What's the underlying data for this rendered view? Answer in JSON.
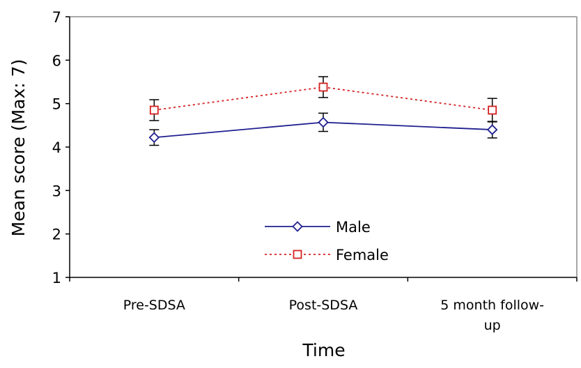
{
  "chart_data": {
    "type": "line",
    "title": "",
    "xlabel": "Time",
    "ylabel": "Mean score (Max: 7)",
    "ylim": [
      1,
      7
    ],
    "yticks": [
      1,
      2,
      3,
      4,
      5,
      6,
      7
    ],
    "categories": [
      [
        "Pre-SDSA"
      ],
      [
        "Post-SDSA"
      ],
      [
        "5 month follow-",
        "up"
      ]
    ],
    "grid": false,
    "legend_position": "bottom-center",
    "series": [
      {
        "name": "Male",
        "values": [
          4.22,
          4.57,
          4.4
        ],
        "error": [
          0.18,
          0.21,
          0.19
        ],
        "color": "#1f1f8f",
        "line_style": "solid",
        "marker": "diamond"
      },
      {
        "name": "Female",
        "values": [
          4.85,
          5.38,
          4.85
        ],
        "error": [
          0.24,
          0.24,
          0.27
        ],
        "color": "#d42020",
        "line_style": "dotted",
        "marker": "square"
      }
    ]
  }
}
